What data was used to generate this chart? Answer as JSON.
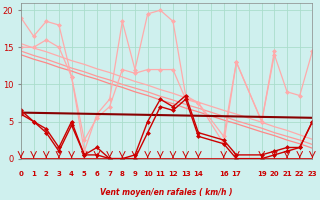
{
  "bg_color": "#cff0ee",
  "grid_color": "#aaddcc",
  "figsize": [
    3.2,
    2.0
  ],
  "dpi": 100,
  "line_rafales_max": {
    "x": [
      0,
      1,
      2,
      3,
      4,
      5,
      6,
      7,
      8,
      9,
      10,
      11,
      12,
      13,
      14,
      16,
      17,
      19,
      20,
      21,
      22,
      23
    ],
    "y": [
      19,
      16.5,
      18.5,
      18,
      11,
      1,
      6,
      8,
      18.5,
      12,
      19.5,
      20,
      18.5,
      8.5,
      7.5,
      3,
      13,
      5,
      14,
      9,
      8.5,
      14.5
    ],
    "color": "#ffaaaa",
    "lw": 0.9,
    "ms": 2.5
  },
  "line_rafales_moy": {
    "x": [
      0,
      1,
      2,
      3,
      4,
      5,
      6,
      7,
      8,
      9,
      10,
      11,
      12,
      13,
      14,
      16,
      17,
      19,
      20
    ],
    "y": [
      15,
      15,
      16,
      15,
      11,
      2.5,
      5.5,
      7,
      12,
      11.5,
      12,
      12,
      12,
      8,
      7.5,
      2,
      13,
      5,
      14.5
    ],
    "color": "#ffaaaa",
    "lw": 0.9,
    "ms": 2.5
  },
  "line_diag_a": {
    "x": [
      0,
      1,
      2,
      3,
      4,
      5,
      6,
      7,
      8,
      9,
      10,
      11,
      12,
      13,
      14,
      16,
      17,
      19,
      20,
      21,
      22,
      23
    ],
    "y": [
      15.5,
      14.9,
      14.4,
      13.8,
      13.2,
      12.7,
      12.1,
      11.6,
      11.0,
      10.4,
      9.9,
      9.3,
      8.8,
      8.2,
      7.6,
      6.5,
      6.0,
      4.9,
      4.3,
      3.8,
      3.2,
      2.6
    ],
    "color": "#ffaaaa",
    "lw": 0.9
  },
  "line_diag_b": {
    "x": [
      0,
      1,
      2,
      3,
      4,
      5,
      6,
      7,
      8,
      9,
      10,
      11,
      12,
      13,
      14,
      16,
      17,
      19,
      20,
      21,
      22,
      23
    ],
    "y": [
      14.5,
      13.9,
      13.4,
      12.8,
      12.2,
      11.7,
      11.1,
      10.6,
      10.0,
      9.5,
      9.0,
      8.4,
      7.9,
      7.3,
      6.8,
      5.7,
      5.1,
      4.1,
      3.5,
      3.0,
      2.5,
      1.9
    ],
    "color": "#ff9999",
    "lw": 0.9
  },
  "line_diag_c": {
    "x": [
      0,
      1,
      2,
      3,
      4,
      5,
      6,
      7,
      8,
      9,
      10,
      11,
      12,
      13,
      14,
      16,
      17,
      19,
      20,
      21,
      22,
      23
    ],
    "y": [
      14.0,
      13.4,
      12.9,
      12.3,
      11.8,
      11.2,
      10.7,
      10.1,
      9.6,
      9.0,
      8.5,
      7.9,
      7.4,
      6.8,
      6.3,
      5.2,
      4.7,
      3.6,
      3.1,
      2.5,
      2.0,
      1.4
    ],
    "color": "#ff8888",
    "lw": 0.9
  },
  "line_wind_mean": {
    "x": [
      0,
      1,
      2,
      3,
      4,
      5,
      6,
      7,
      8,
      9,
      10,
      11,
      12,
      13,
      14,
      16,
      17,
      19,
      20,
      21,
      22,
      23
    ],
    "y": [
      6.5,
      5,
      4,
      1.5,
      5,
      0.5,
      1.5,
      0,
      0,
      0.5,
      5,
      8,
      7,
      8.5,
      3.5,
      2.5,
      0.5,
      0.5,
      1,
      1.5,
      1.5,
      5
    ],
    "color": "#cc0000",
    "lw": 1.0,
    "ms": 2.5
  },
  "line_wind_min": {
    "x": [
      0,
      1,
      2,
      3,
      4,
      5,
      6,
      7,
      8,
      9,
      10,
      11,
      12,
      13,
      14,
      16,
      17,
      19,
      20,
      21,
      22,
      23
    ],
    "y": [
      6,
      5,
      3.5,
      1,
      4.5,
      0.5,
      0.5,
      0,
      0,
      0,
      3.5,
      7,
      6.5,
      8,
      3,
      2,
      0,
      0,
      0.5,
      1,
      1.5,
      5
    ],
    "color": "#cc0000",
    "lw": 1.0,
    "ms": 2.5
  },
  "line_horizontal": {
    "x": [
      0,
      23
    ],
    "y": [
      6.2,
      5.5
    ],
    "color": "#880000",
    "lw": 1.5
  },
  "arrows_x": [
    0,
    1,
    2,
    3,
    4,
    5,
    6,
    7,
    8,
    9,
    10,
    11,
    12,
    13,
    14,
    16,
    17,
    19,
    20,
    21,
    22,
    23
  ],
  "xlim": [
    0,
    23
  ],
  "ylim": [
    0,
    21
  ],
  "yticks": [
    0,
    5,
    10,
    15,
    20
  ],
  "xlabel": "Vent moyen/en rafales ( km/h )",
  "tick_color": "#cc0000",
  "label_color": "#cc0000",
  "arrow_color": "#cc0000"
}
